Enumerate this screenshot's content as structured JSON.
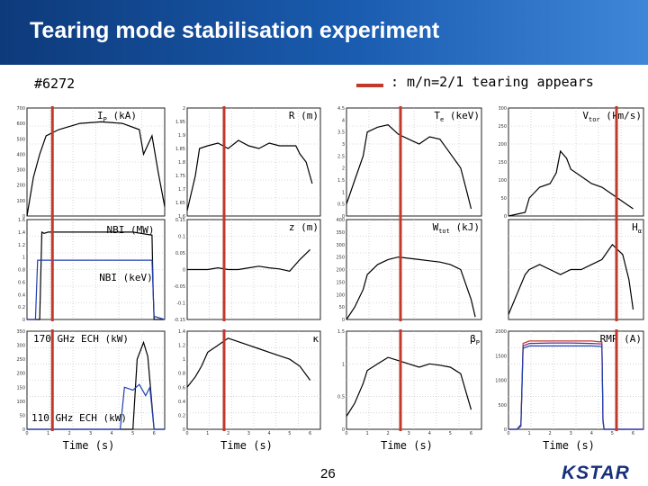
{
  "header": {
    "title": "Tearing mode stabilisation experiment"
  },
  "shot_label": "#6272",
  "legend": {
    "text": ": m/n=2/1 tearing appears",
    "color": "#c0392b"
  },
  "footer": {
    "page_number": "26",
    "logo_text": "KSTAR"
  },
  "chart_data": [
    {
      "type": "line",
      "panel": "col1-row1",
      "labels": [
        {
          "main": "I",
          "sub": "P",
          "rest": " (kA)"
        }
      ],
      "ylim": [
        0,
        700
      ],
      "yticks": [
        "700",
        "600",
        "500",
        "400",
        "300",
        "200",
        "100",
        "0"
      ],
      "series": [
        {
          "color": "#000000",
          "x": [
            0,
            0.3,
            0.6,
            0.9,
            1.5,
            2.5,
            3.5,
            4.5,
            5.3,
            5.5,
            5.9,
            6.2,
            6.5
          ],
          "y": [
            0,
            250,
            400,
            520,
            560,
            600,
            610,
            600,
            560,
            400,
            520,
            280,
            60
          ]
        }
      ]
    },
    {
      "type": "line",
      "panel": "col1-row2",
      "labels": [
        {
          "main": "NBI (MW)",
          "sub": "",
          "rest": ""
        },
        {
          "main": "NBI (keV)",
          "sub": "",
          "rest": ""
        }
      ],
      "ylim": [
        0,
        1.6
      ],
      "yticks": [
        "1.6",
        "1.4",
        "1.2",
        "1",
        "0.8",
        "0.6",
        "0.4",
        "0.2",
        "0"
      ],
      "series": [
        {
          "color": "#000000",
          "x": [
            0,
            0.2,
            0.6,
            0.7,
            0.8,
            1.0,
            5.0,
            5.9,
            5.95,
            6.0,
            6.5
          ],
          "y": [
            0,
            0,
            0,
            1.4,
            1.38,
            1.4,
            1.4,
            1.35,
            0.5,
            0,
            0
          ]
        },
        {
          "color": "#1f3fb0",
          "x": [
            0,
            0.4,
            0.5,
            1.0,
            5.0,
            5.9,
            6.0,
            6.5
          ],
          "y": [
            0,
            0,
            0.95,
            0.95,
            0.95,
            0.95,
            0.05,
            0
          ]
        }
      ]
    },
    {
      "type": "line",
      "panel": "col1-row3",
      "labels": [
        {
          "main": "170 GHz ECH (kW)",
          "sub": "",
          "rest": ""
        },
        {
          "main": "110 GHz ECH (kW)",
          "sub": "",
          "rest": ""
        }
      ],
      "ylim": [
        0,
        350
      ],
      "yticks": [
        "350",
        "300",
        "250",
        "200",
        "150",
        "100",
        "50",
        "0"
      ],
      "series": [
        {
          "color": "#000000",
          "x": [
            0,
            3.0,
            3.5,
            4.0,
            4.5,
            5.0,
            5.2,
            5.5,
            5.7,
            6.0,
            6.5
          ],
          "y": [
            0,
            0,
            0,
            0,
            0,
            0,
            250,
            310,
            260,
            0,
            0
          ]
        },
        {
          "color": "#1f3fb0",
          "x": [
            0,
            4.4,
            4.6,
            5.0,
            5.3,
            5.6,
            5.8,
            6.0,
            6.5
          ],
          "y": [
            0,
            0,
            150,
            140,
            160,
            120,
            150,
            0,
            0
          ]
        }
      ]
    },
    {
      "type": "line",
      "panel": "col2-row1",
      "labels": [
        {
          "main": "R (m)",
          "sub": "",
          "rest": ""
        }
      ],
      "ylim": [
        1.6,
        2.0
      ],
      "yticks": [
        "2",
        "1.95",
        "1.9",
        "1.85",
        "1.8",
        "1.75",
        "1.7",
        "1.65",
        "1.6"
      ],
      "series": [
        {
          "color": "#000000",
          "x": [
            0,
            0.4,
            0.6,
            1.0,
            1.5,
            2.0,
            2.5,
            3.0,
            3.5,
            4.0,
            4.5,
            5.0,
            5.3,
            5.5,
            5.8,
            6.1
          ],
          "y": [
            1.62,
            1.75,
            1.85,
            1.86,
            1.87,
            1.85,
            1.88,
            1.86,
            1.85,
            1.87,
            1.86,
            1.86,
            1.86,
            1.83,
            1.8,
            1.72
          ]
        }
      ]
    },
    {
      "type": "line",
      "panel": "col2-row2",
      "labels": [
        {
          "main": "z (m)",
          "sub": "",
          "rest": ""
        }
      ],
      "ylim": [
        -0.15,
        0.15
      ],
      "yticks": [
        "0.15",
        "0.1",
        "0.05",
        "0",
        "-0.05",
        "-0.1",
        "-0.15"
      ],
      "series": [
        {
          "color": "#000000",
          "x": [
            0,
            0.3,
            1.0,
            1.5,
            2.0,
            2.5,
            3.0,
            3.5,
            4.0,
            4.5,
            5.0,
            5.5,
            6.0
          ],
          "y": [
            0,
            0.0,
            0.0,
            0.005,
            0.0,
            0.0,
            0.005,
            0.01,
            0.005,
            0.002,
            -0.005,
            0.03,
            0.06
          ]
        }
      ]
    },
    {
      "type": "line",
      "panel": "col2-row3",
      "labels": [
        {
          "main": "κ",
          "sub": "",
          "rest": ""
        }
      ],
      "ylim": [
        0,
        1.4
      ],
      "yticks": [
        "1.4",
        "1.2",
        "1",
        "0.8",
        "0.6",
        "0.4",
        "0.2",
        "0"
      ],
      "series": [
        {
          "color": "#000000",
          "x": [
            0,
            0.4,
            0.7,
            1.0,
            1.5,
            2.0,
            2.5,
            3.0,
            3.5,
            4.0,
            4.5,
            5.0,
            5.5,
            6.0
          ],
          "y": [
            0.6,
            0.75,
            0.9,
            1.1,
            1.2,
            1.3,
            1.25,
            1.2,
            1.15,
            1.1,
            1.05,
            1.0,
            0.9,
            0.7
          ]
        }
      ]
    },
    {
      "type": "line",
      "panel": "col3-row1",
      "labels": [
        {
          "main": "T",
          "sub": "e",
          "rest": " (keV)"
        }
      ],
      "ylim": [
        0,
        4.5
      ],
      "yticks": [
        "4.5",
        "4",
        "3.5",
        "3",
        "2.5",
        "2",
        "1.5",
        "1",
        "0.5",
        "0"
      ],
      "series": [
        {
          "color": "#000000",
          "x": [
            0,
            0.4,
            0.8,
            1.0,
            1.5,
            2.0,
            2.5,
            3.0,
            3.5,
            4.0,
            4.5,
            5.0,
            5.5,
            5.8,
            6.0
          ],
          "y": [
            0.5,
            1.5,
            2.5,
            3.5,
            3.7,
            3.8,
            3.4,
            3.2,
            3.0,
            3.3,
            3.2,
            2.6,
            2.0,
            1.0,
            0.3
          ]
        }
      ]
    },
    {
      "type": "line",
      "panel": "col3-row2",
      "labels": [
        {
          "main": "W",
          "sub": "tot",
          "rest": " (kJ)"
        }
      ],
      "ylim": [
        0,
        400
      ],
      "yticks": [
        "400",
        "350",
        "300",
        "250",
        "200",
        "150",
        "100",
        "50",
        "0"
      ],
      "series": [
        {
          "color": "#000000",
          "x": [
            0,
            0.4,
            0.8,
            1.0,
            1.5,
            2.0,
            2.5,
            3.0,
            3.5,
            4.0,
            4.5,
            5.0,
            5.5,
            6.0,
            6.2
          ],
          "y": [
            0,
            50,
            120,
            180,
            220,
            240,
            250,
            245,
            240,
            235,
            230,
            220,
            200,
            80,
            10
          ]
        }
      ]
    },
    {
      "type": "line",
      "panel": "col3-row3",
      "labels": [
        {
          "main": "β",
          "sub": "P",
          "rest": ""
        }
      ],
      "ylim": [
        0,
        1.5
      ],
      "yticks": [
        "1.5",
        "1",
        "0.5",
        "0"
      ],
      "series": [
        {
          "color": "#000000",
          "x": [
            0,
            0.4,
            0.8,
            1.0,
            1.5,
            2.0,
            2.5,
            3.0,
            3.5,
            4.0,
            4.5,
            5.0,
            5.5,
            6.0
          ],
          "y": [
            0.2,
            0.4,
            0.7,
            0.9,
            1.0,
            1.1,
            1.05,
            1.0,
            0.95,
            1.0,
            0.98,
            0.95,
            0.85,
            0.3
          ]
        }
      ]
    },
    {
      "type": "line",
      "panel": "col4-row1",
      "labels": [
        {
          "main": "V",
          "sub": "tor",
          "rest": " (km/s)"
        }
      ],
      "ylim": [
        0,
        300
      ],
      "yticks": [
        "300",
        "250",
        "200",
        "150",
        "100",
        "50",
        "0"
      ],
      "series": [
        {
          "color": "#000000",
          "x": [
            0,
            0.8,
            1.0,
            1.5,
            2.0,
            2.3,
            2.5,
            2.8,
            3.0,
            3.5,
            4.0,
            4.5,
            5.0,
            5.5,
            6.0
          ],
          "y": [
            0,
            10,
            50,
            80,
            90,
            120,
            180,
            160,
            130,
            110,
            90,
            80,
            60,
            40,
            20
          ]
        }
      ]
    },
    {
      "type": "line",
      "panel": "col4-row2",
      "labels": [
        {
          "main": "H",
          "sub": "α",
          "rest": ""
        }
      ],
      "ylim": [
        0,
        1
      ],
      "yticks": [],
      "series": [
        {
          "color": "#000000",
          "x": [
            0,
            0.4,
            0.8,
            1.0,
            1.5,
            2.0,
            2.5,
            3.0,
            3.5,
            4.0,
            4.5,
            5.0,
            5.5,
            5.8,
            6.0
          ],
          "y": [
            0.05,
            0.25,
            0.45,
            0.5,
            0.55,
            0.5,
            0.45,
            0.5,
            0.5,
            0.55,
            0.6,
            0.75,
            0.65,
            0.4,
            0.1
          ]
        }
      ]
    },
    {
      "type": "line",
      "panel": "col4-row3",
      "labels": [
        {
          "main": "RMP (A)",
          "sub": "",
          "rest": ""
        }
      ],
      "ylim": [
        0,
        2000
      ],
      "yticks": [
        "2000",
        "1500",
        "1000",
        "500",
        "0"
      ],
      "series": [
        {
          "color": "#c0392b",
          "x": [
            0,
            0.4,
            0.6,
            0.7,
            1.0,
            2.0,
            3.0,
            4.0,
            4.5,
            4.55,
            4.6,
            6.5
          ],
          "y": [
            0,
            0,
            100,
            1750,
            1800,
            1800,
            1800,
            1800,
            1780,
            200,
            0,
            0
          ]
        },
        {
          "color": "#6a2a8c",
          "x": [
            0,
            0.4,
            0.6,
            0.7,
            1.0,
            2.0,
            3.0,
            4.0,
            4.5,
            4.55,
            4.6,
            6.5
          ],
          "y": [
            0,
            0,
            80,
            1700,
            1750,
            1760,
            1760,
            1750,
            1740,
            180,
            0,
            0
          ]
        },
        {
          "color": "#1f3fb0",
          "x": [
            0,
            0.4,
            0.6,
            0.7,
            1.0,
            2.0,
            3.0,
            4.0,
            4.5,
            4.55,
            4.6,
            6.5
          ],
          "y": [
            0,
            0,
            60,
            1650,
            1700,
            1700,
            1700,
            1700,
            1690,
            150,
            0,
            0
          ]
        }
      ]
    }
  ],
  "xaxis": {
    "xlim": [
      0,
      6.5
    ],
    "xticks": [
      "0",
      "1",
      "2",
      "3",
      "4",
      "5",
      "6"
    ],
    "xlabel": "Time (s)"
  },
  "tearing_onset_times": [
    1.2,
    1.8,
    2.6,
    5.2
  ]
}
